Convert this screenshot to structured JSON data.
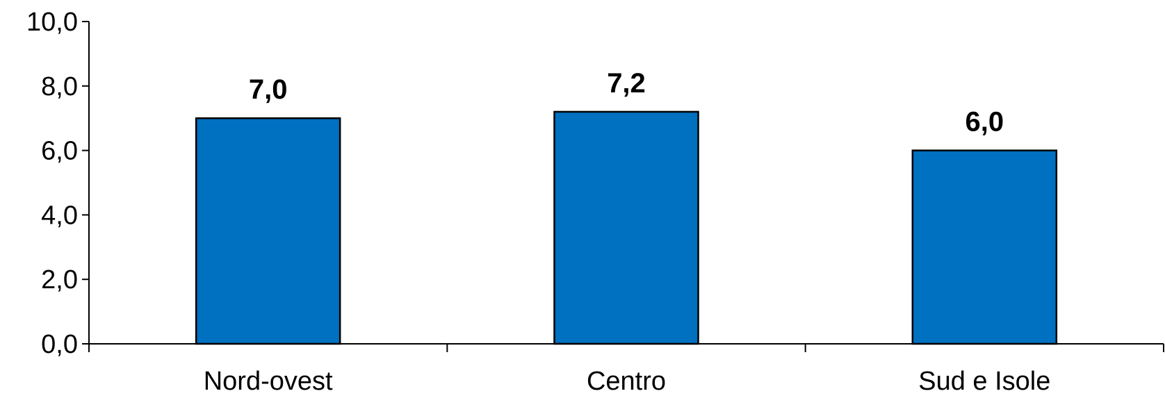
{
  "chart_data": {
    "type": "bar",
    "categories": [
      "Nord-ovest",
      "Centro",
      "Sud e Isole"
    ],
    "values": [
      7.0,
      7.2,
      6.0
    ],
    "data_labels": [
      "7,0",
      "7,2",
      "6,0"
    ],
    "title": "",
    "xlabel": "",
    "ylabel": "",
    "ylim": [
      0,
      10
    ],
    "y_ticks": [
      0,
      2,
      4,
      6,
      8,
      10
    ],
    "y_tick_labels": [
      "0,0",
      "2,0",
      "4,0",
      "6,0",
      "8,0",
      "10,0"
    ],
    "grid": false,
    "legend": "none",
    "bar_color": "#0070C0",
    "bar_edge_color": "#000000"
  }
}
